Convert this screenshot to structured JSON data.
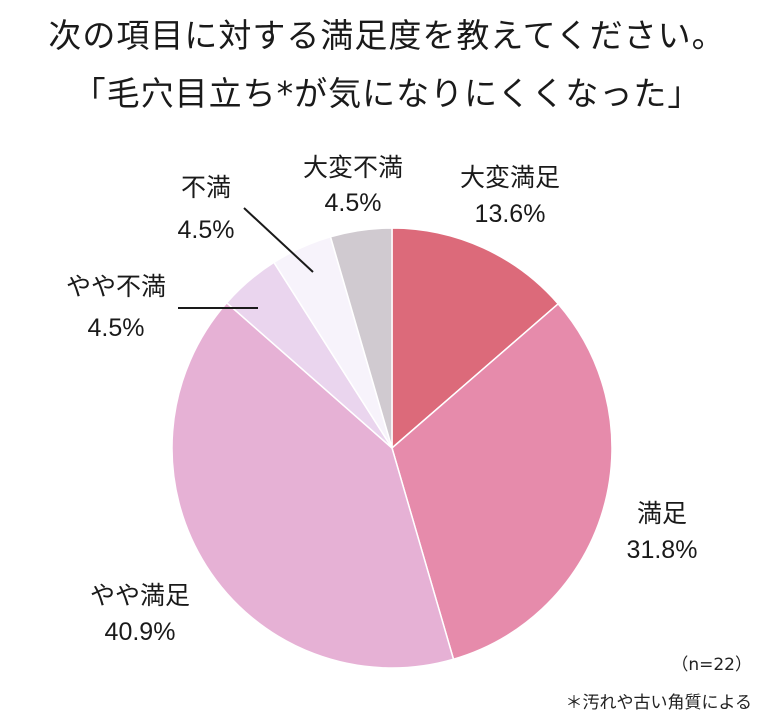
{
  "title_lines": [
    "次の項目に対する満足度を教えてください。",
    "「毛穴目立ち*が気になりにくくなった」"
  ],
  "sample_size": "（n=22）",
  "footnote": "＊汚れや古い角質による",
  "chart_data": {
    "type": "pie",
    "title": "次の項目に対する満足度を教えてください。「毛穴目立ち*が気になりにくくなった」",
    "start": "12 o'clock",
    "direction": "clockwise",
    "unit": "%",
    "slices": [
      {
        "label": "大変満足",
        "value": 13.6,
        "value_text": "13.6%",
        "color": "#dc6a7a"
      },
      {
        "label": "満足",
        "value": 31.8,
        "value_text": "31.8%",
        "color": "#e68bab"
      },
      {
        "label": "やや満足",
        "value": 40.9,
        "value_text": "40.9%",
        "color": "#e6b1d5"
      },
      {
        "label": "やや不満",
        "value": 4.5,
        "value_text": "4.5%",
        "color": "#ead5ee"
      },
      {
        "label": "不満",
        "value": 4.5,
        "value_text": "4.5%",
        "color": "#f7f3fb"
      },
      {
        "label": "大変不満",
        "value": 4.5,
        "value_text": "4.5%",
        "color": "#d0cad0"
      }
    ]
  }
}
